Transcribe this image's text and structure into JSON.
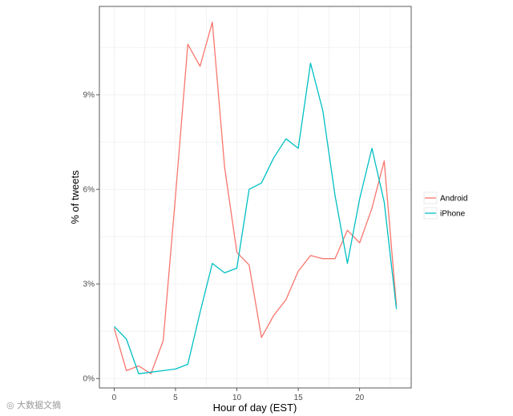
{
  "chart_data": {
    "type": "line",
    "xlabel": "Hour of day (EST)",
    "ylabel": "% of tweets",
    "xlim": [
      -1.2,
      24.2
    ],
    "ylim": [
      -0.3,
      11.8
    ],
    "x_ticks": [
      0,
      5,
      10,
      15,
      20
    ],
    "y_ticks": [
      0,
      3,
      6,
      9
    ],
    "y_tick_labels": [
      "0%",
      "3%",
      "6%",
      "9%"
    ],
    "grid": true,
    "legend_position": "right",
    "series": [
      {
        "name": "Android",
        "color": "#F8766D",
        "x": [
          0,
          1,
          2,
          3,
          4,
          5,
          6,
          7,
          8,
          9,
          10,
          11,
          12,
          13,
          14,
          15,
          16,
          17,
          18,
          19,
          20,
          21,
          22,
          23
        ],
        "values": [
          1.6,
          0.25,
          0.4,
          0.15,
          1.2,
          5.8,
          10.6,
          9.9,
          11.3,
          6.7,
          4.0,
          3.6,
          1.3,
          2.0,
          2.5,
          3.4,
          3.9,
          3.8,
          3.8,
          4.7,
          4.3,
          5.4,
          6.9,
          2.3
        ]
      },
      {
        "name": "iPhone",
        "color": "#00BFC4",
        "x": [
          0,
          1,
          2,
          3,
          4,
          5,
          6,
          7,
          8,
          9,
          10,
          11,
          12,
          13,
          14,
          15,
          16,
          17,
          18,
          19,
          20,
          21,
          22,
          23
        ],
        "values": [
          1.65,
          1.25,
          0.15,
          0.2,
          0.25,
          0.3,
          0.45,
          2.1,
          3.65,
          3.35,
          3.5,
          6.0,
          6.2,
          7.0,
          7.6,
          7.3,
          10.0,
          8.5,
          5.8,
          3.65,
          5.7,
          7.3,
          5.6,
          2.2
        ]
      }
    ]
  }
}
